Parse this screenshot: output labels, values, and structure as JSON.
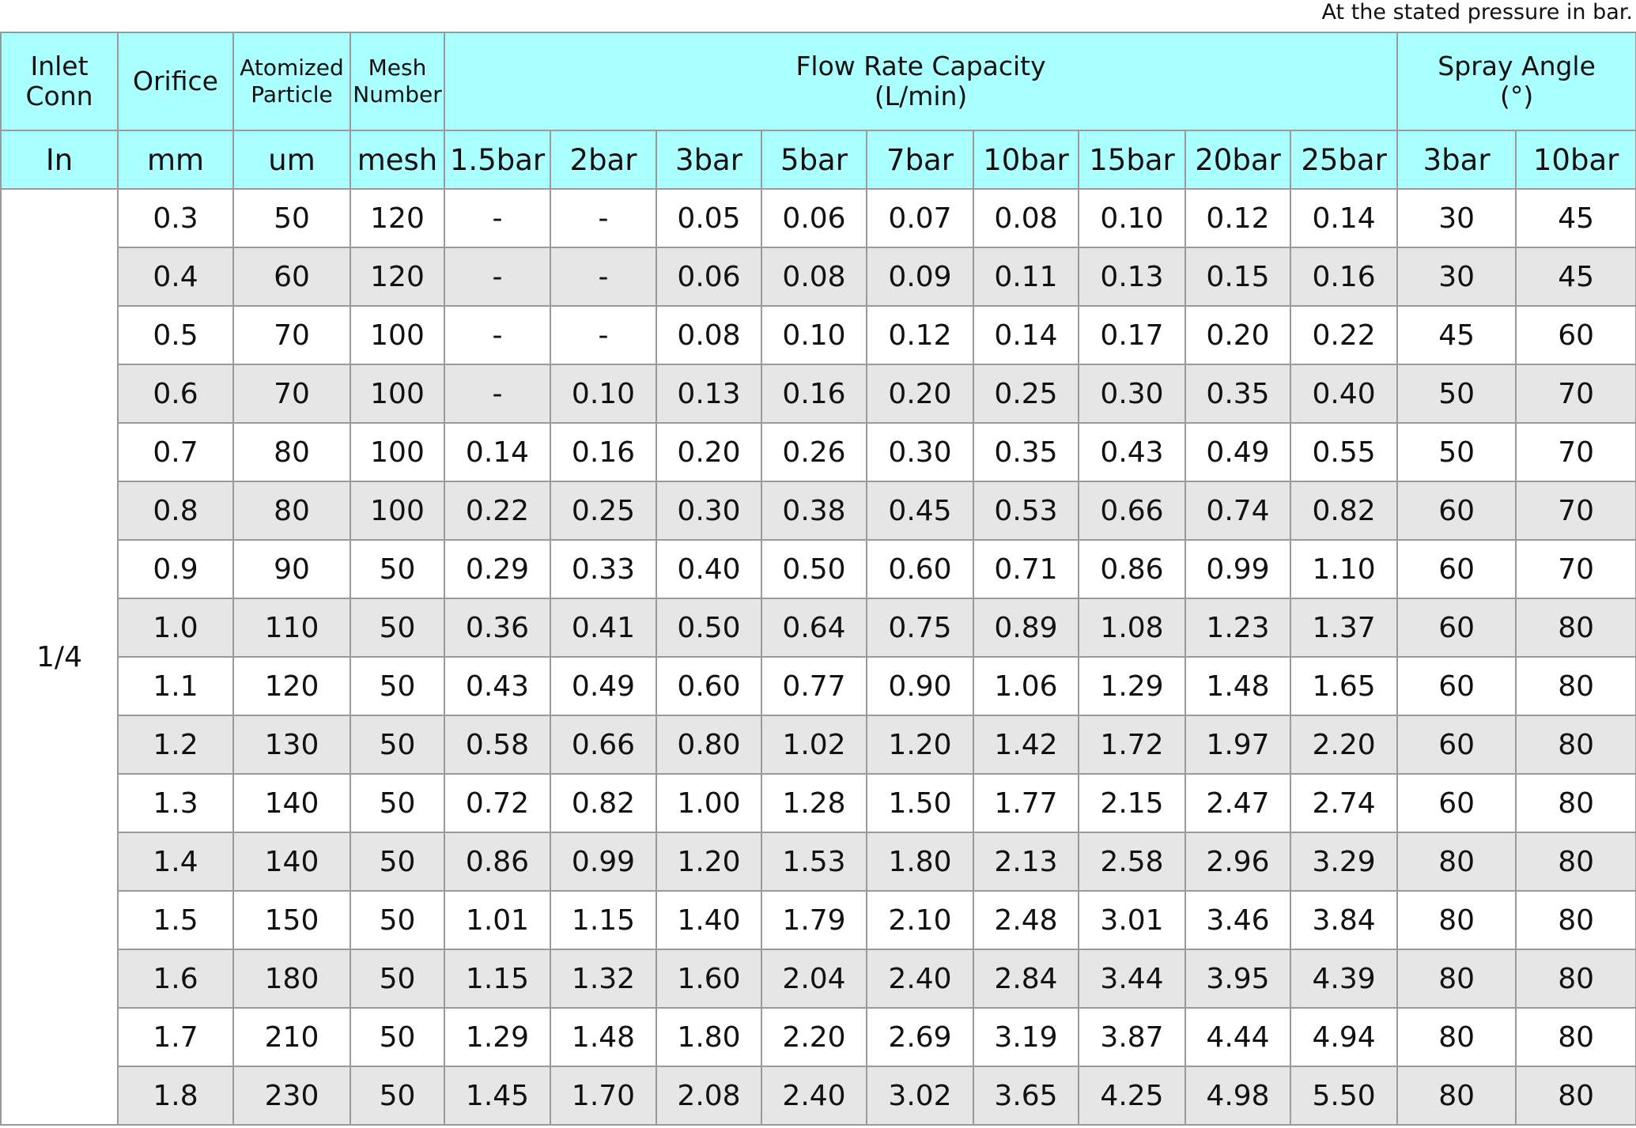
{
  "note": "At the stated pressure in bar.",
  "table": {
    "header": [
      "Inlet\nConn",
      "Orifice",
      "Atomized\nParticle",
      "Mesh\nNumber",
      "Flow Rate Capacity\n(L/min)",
      "Spray Angle\n(°)"
    ],
    "units": [
      "In",
      "mm",
      "um",
      "mesh",
      "1.5bar",
      "2bar",
      "3bar",
      "5bar",
      "7bar",
      "10bar",
      "15bar",
      "20bar",
      "25bar",
      "3bar",
      "10bar"
    ],
    "inlet": "1/4",
    "rows": [
      [
        "0.3",
        "50",
        "120",
        "-",
        "-",
        "0.05",
        "0.06",
        "0.07",
        "0.08",
        "0.10",
        "0.12",
        "0.14",
        "30",
        "45"
      ],
      [
        "0.4",
        "60",
        "120",
        "-",
        "-",
        "0.06",
        "0.08",
        "0.09",
        "0.11",
        "0.13",
        "0.15",
        "0.16",
        "30",
        "45"
      ],
      [
        "0.5",
        "70",
        "100",
        "-",
        "-",
        "0.08",
        "0.10",
        "0.12",
        "0.14",
        "0.17",
        "0.20",
        "0.22",
        "45",
        "60"
      ],
      [
        "0.6",
        "70",
        "100",
        "-",
        "0.10",
        "0.13",
        "0.16",
        "0.20",
        "0.25",
        "0.30",
        "0.35",
        "0.40",
        "50",
        "70"
      ],
      [
        "0.7",
        "80",
        "100",
        "0.14",
        "0.16",
        "0.20",
        "0.26",
        "0.30",
        "0.35",
        "0.43",
        "0.49",
        "0.55",
        "50",
        "70"
      ],
      [
        "0.8",
        "80",
        "100",
        "0.22",
        "0.25",
        "0.30",
        "0.38",
        "0.45",
        "0.53",
        "0.66",
        "0.74",
        "0.82",
        "60",
        "70"
      ],
      [
        "0.9",
        "90",
        "50",
        "0.29",
        "0.33",
        "0.40",
        "0.50",
        "0.60",
        "0.71",
        "0.86",
        "0.99",
        "1.10",
        "60",
        "70"
      ],
      [
        "1.0",
        "110",
        "50",
        "0.36",
        "0.41",
        "0.50",
        "0.64",
        "0.75",
        "0.89",
        "1.08",
        "1.23",
        "1.37",
        "60",
        "80"
      ],
      [
        "1.1",
        "120",
        "50",
        "0.43",
        "0.49",
        "0.60",
        "0.77",
        "0.90",
        "1.06",
        "1.29",
        "1.48",
        "1.65",
        "60",
        "80"
      ],
      [
        "1.2",
        "130",
        "50",
        "0.58",
        "0.66",
        "0.80",
        "1.02",
        "1.20",
        "1.42",
        "1.72",
        "1.97",
        "2.20",
        "60",
        "80"
      ],
      [
        "1.3",
        "140",
        "50",
        "0.72",
        "0.82",
        "1.00",
        "1.28",
        "1.50",
        "1.77",
        "2.15",
        "2.47",
        "2.74",
        "60",
        "80"
      ],
      [
        "1.4",
        "140",
        "50",
        "0.86",
        "0.99",
        "1.20",
        "1.53",
        "1.80",
        "2.13",
        "2.58",
        "2.96",
        "3.29",
        "80",
        "80"
      ],
      [
        "1.5",
        "150",
        "50",
        "1.01",
        "1.15",
        "1.40",
        "1.79",
        "2.10",
        "2.48",
        "3.01",
        "3.46",
        "3.84",
        "80",
        "80"
      ],
      [
        "1.6",
        "180",
        "50",
        "1.15",
        "1.32",
        "1.60",
        "2.04",
        "2.40",
        "2.84",
        "3.44",
        "3.95",
        "4.39",
        "80",
        "80"
      ],
      [
        "1.7",
        "210",
        "50",
        "1.29",
        "1.48",
        "1.80",
        "2.20",
        "2.69",
        "3.19",
        "3.87",
        "4.44",
        "4.94",
        "80",
        "80"
      ],
      [
        "1.8",
        "230",
        "50",
        "1.45",
        "1.70",
        "2.08",
        "2.40",
        "3.02",
        "3.65",
        "4.25",
        "4.98",
        "5.50",
        "80",
        "80"
      ]
    ]
  }
}
